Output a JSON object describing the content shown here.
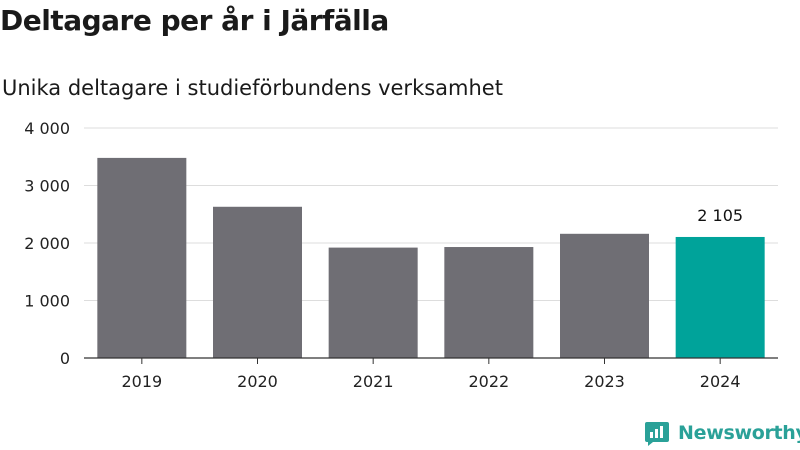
{
  "title": "Deltagare per år i Järfälla",
  "subtitle": "Unika deltagare i studieförbundens verksamhet",
  "brand": "Newsworthy",
  "colors": {
    "bar": "#6f6e74",
    "highlight": "#00a39a",
    "grid": "#dddddd",
    "axis": "#333333",
    "brand": "#2aa198"
  },
  "chart_data": {
    "type": "bar",
    "title": "Deltagare per år i Järfälla",
    "subtitle": "Unika deltagare i studieförbundens verksamhet",
    "categories": [
      "2019",
      "2020",
      "2021",
      "2022",
      "2023",
      "2024"
    ],
    "values": [
      3480,
      2630,
      1920,
      1930,
      2160,
      2105
    ],
    "highlight_index": 5,
    "highlight_label": "2 105",
    "ylim": [
      0,
      4000
    ],
    "yticks": [
      0,
      1000,
      2000,
      3000,
      4000
    ],
    "ytick_labels": [
      "0",
      "1 000",
      "2 000",
      "3 000",
      "4 000"
    ],
    "grid": true,
    "xlabel": "",
    "ylabel": ""
  }
}
